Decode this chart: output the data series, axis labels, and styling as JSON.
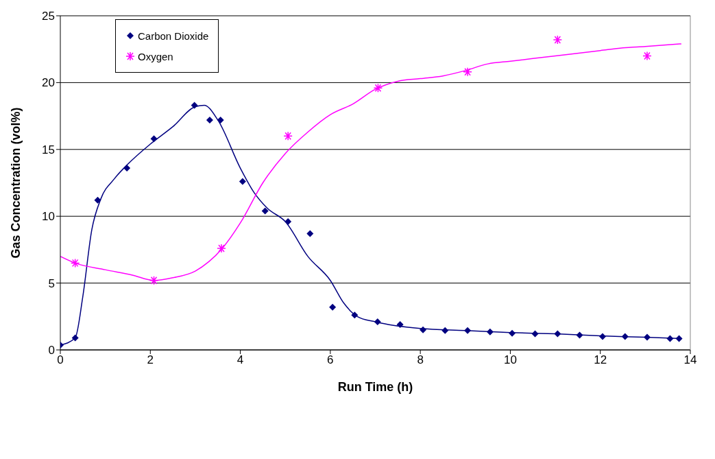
{
  "chart_data": {
    "type": "scatter",
    "xlabel": "Run Time (h)",
    "ylabel": "Gas Concentration (vol%)",
    "xlim": [
      0,
      14
    ],
    "xticks": [
      0,
      2,
      4,
      6,
      8,
      10,
      12,
      14
    ],
    "ylim": [
      0,
      25
    ],
    "yticks": [
      0,
      5,
      10,
      15,
      20,
      25
    ],
    "grid": "y",
    "legend": "top left",
    "series": [
      {
        "name": "Carbon Dioxide",
        "marker": "diamond",
        "color": "#000080",
        "x": [
          0,
          0.33,
          0.83,
          1.48,
          2.08,
          2.98,
          3.32,
          3.56,
          4.05,
          4.55,
          5.06,
          5.55,
          6.05,
          6.54,
          7.05,
          7.55,
          8.06,
          8.55,
          9.05,
          9.55,
          10.04,
          10.55,
          11.05,
          11.54,
          12.05,
          12.55,
          13.04,
          13.55,
          13.75
        ],
        "values": [
          0.36,
          0.9,
          11.2,
          13.6,
          15.8,
          18.3,
          17.2,
          17.2,
          12.6,
          10.4,
          9.6,
          8.7,
          3.2,
          2.6,
          2.1,
          1.9,
          1.5,
          1.45,
          1.45,
          1.35,
          1.25,
          1.2,
          1.2,
          1.1,
          1.0,
          1.0,
          0.95,
          0.85,
          0.85
        ]
      },
      {
        "name": "Oxygen",
        "marker": "cross",
        "color": "#ff00ff",
        "x": [
          0.33,
          2.08,
          3.58,
          5.06,
          7.06,
          9.05,
          11.05,
          13.04
        ],
        "values": [
          6.5,
          5.2,
          7.6,
          16.0,
          19.6,
          20.8,
          23.2,
          22.0
        ]
      },
      {
        "type": "line",
        "marker": "none",
        "color": "#000080",
        "x": [
          0,
          0.33,
          0.5,
          0.7,
          0.9,
          1.2,
          1.5,
          2,
          2.5,
          3,
          3.2,
          3.5,
          4,
          4.3,
          4.6,
          5,
          5.5,
          6,
          6.3,
          6.6,
          7,
          8,
          9,
          10,
          11,
          12,
          13,
          13.8
        ],
        "values": [
          0.36,
          0.9,
          4,
          9,
          11.3,
          12.8,
          13.9,
          15.4,
          16.7,
          18.2,
          18.3,
          17.2,
          13.6,
          11.8,
          10.6,
          9.6,
          7,
          5.2,
          3.5,
          2.5,
          2.1,
          1.6,
          1.45,
          1.3,
          1.2,
          1.05,
          0.95,
          0.85
        ]
      },
      {
        "type": "line",
        "marker": "none",
        "color": "#ff00ff",
        "x": [
          0,
          0.33,
          1,
          1.6,
          2.08,
          2.5,
          3,
          3.3,
          3.6,
          4,
          4.5,
          5,
          5.5,
          6,
          6.5,
          7,
          7.5,
          8,
          8.5,
          9,
          9.5,
          10,
          11,
          12,
          12.5,
          13,
          13.8
        ],
        "values": [
          7,
          6.5,
          6,
          5.6,
          5.2,
          5.4,
          5.9,
          6.6,
          7.6,
          9.5,
          12.5,
          14.7,
          16.3,
          17.6,
          18.4,
          19.5,
          20.1,
          20.3,
          20.5,
          20.9,
          21.4,
          21.6,
          22.0,
          22.4,
          22.6,
          22.7,
          22.9
        ]
      }
    ]
  }
}
